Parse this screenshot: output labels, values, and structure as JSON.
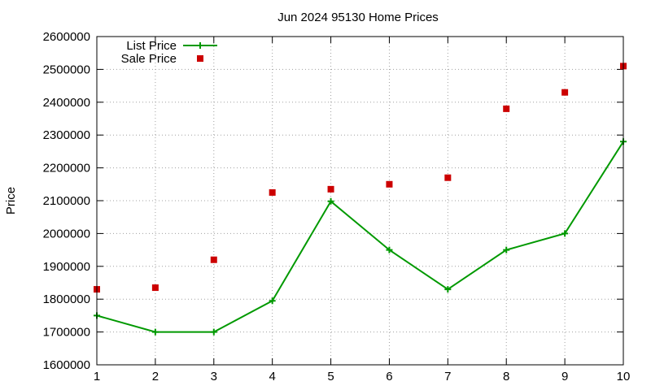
{
  "chart_data": {
    "type": "line",
    "title": "Jun 2024 95130 Home Prices",
    "xlabel": "",
    "ylabel": "Price",
    "xlim": [
      1,
      10
    ],
    "ylim": [
      1600000,
      2600000
    ],
    "x_ticks": [
      1,
      2,
      3,
      4,
      5,
      6,
      7,
      8,
      9,
      10
    ],
    "y_ticks": [
      1600000,
      1700000,
      1800000,
      1900000,
      2000000,
      2100000,
      2200000,
      2300000,
      2400000,
      2500000,
      2600000
    ],
    "grid": true,
    "legend_position": "top-left",
    "x": [
      1,
      2,
      3,
      4,
      5,
      6,
      7,
      8,
      9,
      10
    ],
    "series": [
      {
        "name": "List Price",
        "style": "line-with-plus-markers",
        "color": "#009900",
        "values": [
          1750000,
          1700000,
          1700000,
          1795000,
          2098000,
          1950000,
          1830000,
          1950000,
          2000000,
          2280000
        ]
      },
      {
        "name": "Sale Price",
        "style": "square-points",
        "color": "#cc0000",
        "values": [
          1830000,
          1835000,
          1920000,
          2125000,
          2135000,
          2150000,
          2170000,
          2380000,
          2430000,
          2510000
        ]
      }
    ]
  }
}
